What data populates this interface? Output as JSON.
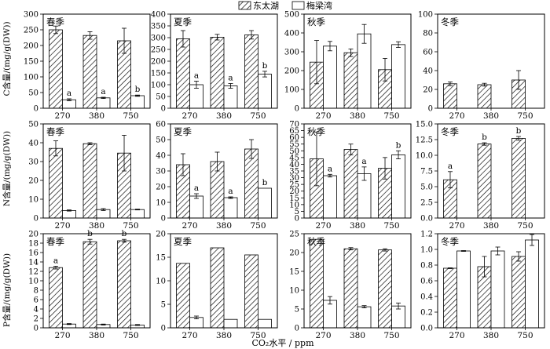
{
  "legend": {
    "items": [
      {
        "label": "东太湖",
        "pattern": "hatched"
      },
      {
        "label": "梅梁湾",
        "pattern": "white"
      }
    ]
  },
  "xlabel": "CO₂水平 / ppm",
  "row_ylabels": [
    "C含量/(mg/g(DW))",
    "N含量/(mg/g(DW))",
    "P含量/(mg/g(DW))"
  ],
  "chart_data": [
    {
      "type": "bar",
      "title": "春季",
      "row": 0,
      "col": 0,
      "categories": [
        "270",
        "380",
        "750"
      ],
      "series": [
        {
          "name": "东太湖",
          "values": [
            250,
            232,
            215
          ],
          "errors": [
            12,
            12,
            40
          ]
        },
        {
          "name": "梅梁湾",
          "values": [
            27,
            33,
            40
          ],
          "errors": [
            3,
            2,
            2
          ]
        }
      ],
      "ylim": [
        0,
        300
      ],
      "yticks": [
        0,
        50,
        100,
        150,
        200,
        250,
        300
      ],
      "annotations": [
        {
          "cat": 0,
          "series": 1,
          "text": "a"
        },
        {
          "cat": 1,
          "series": 1,
          "text": "a"
        },
        {
          "cat": 2,
          "series": 1,
          "text": "b"
        }
      ]
    },
    {
      "type": "bar",
      "title": "夏季",
      "row": 0,
      "col": 1,
      "categories": [
        "270",
        "380",
        "750"
      ],
      "series": [
        {
          "name": "东太湖",
          "values": [
            295,
            302,
            312
          ],
          "errors": [
            35,
            12,
            18
          ]
        },
        {
          "name": "梅梁湾",
          "values": [
            100,
            95,
            145
          ],
          "errors": [
            15,
            10,
            12
          ]
        }
      ],
      "ylim": [
        0,
        400
      ],
      "yticks": [
        0,
        50,
        100,
        150,
        200,
        250,
        300,
        350,
        400
      ],
      "annotations": [
        {
          "cat": 0,
          "series": 1,
          "text": "a"
        },
        {
          "cat": 1,
          "series": 1,
          "text": "a"
        },
        {
          "cat": 2,
          "series": 1,
          "text": "b"
        }
      ]
    },
    {
      "type": "bar",
      "title": "秋季",
      "row": 0,
      "col": 2,
      "categories": [
        "270",
        "380",
        "750"
      ],
      "series": [
        {
          "name": "东太湖",
          "values": [
            245,
            295,
            205
          ],
          "errors": [
            115,
            20,
            60
          ]
        },
        {
          "name": "梅梁湾",
          "values": [
            330,
            395,
            338
          ],
          "errors": [
            25,
            50,
            15
          ]
        }
      ],
      "ylim": [
        0,
        500
      ],
      "yticks": [
        0,
        100,
        200,
        300,
        400,
        500
      ],
      "annotations": []
    },
    {
      "type": "bar",
      "title": "冬季",
      "row": 0,
      "col": 3,
      "categories": [
        "270",
        "380",
        "750"
      ],
      "series": [
        {
          "name": "东太湖",
          "values": [
            26,
            25,
            30
          ],
          "errors": [
            2,
            1.5,
            10
          ]
        },
        {
          "name": "梅梁湾",
          "values": [
            0,
            0,
            0
          ],
          "errors": [
            0,
            0,
            0
          ]
        }
      ],
      "ylim": [
        0,
        100
      ],
      "yticks": [
        0,
        20,
        40,
        60,
        80,
        100
      ],
      "annotations": []
    },
    {
      "type": "bar",
      "title": "春季",
      "row": 1,
      "col": 0,
      "categories": [
        "270",
        "380",
        "750"
      ],
      "series": [
        {
          "name": "东太湖",
          "values": [
            37,
            39.5,
            34.5
          ],
          "errors": [
            4,
            0.5,
            9.5
          ]
        },
        {
          "name": "梅梁湾",
          "values": [
            4,
            4.5,
            4.5
          ],
          "errors": [
            0.3,
            0.5,
            0.2
          ]
        }
      ],
      "ylim": [
        0,
        50
      ],
      "yticks": [
        0,
        10,
        20,
        30,
        40,
        50
      ],
      "annotations": []
    },
    {
      "type": "bar",
      "title": "夏季",
      "row": 1,
      "col": 1,
      "categories": [
        "270",
        "380",
        "750"
      ],
      "series": [
        {
          "name": "东太湖",
          "values": [
            34,
            36,
            44
          ],
          "errors": [
            7,
            6,
            6
          ]
        },
        {
          "name": "梅梁湾",
          "values": [
            14,
            13,
            19
          ],
          "errors": [
            1.5,
            0.5,
            0
          ]
        }
      ],
      "ylim": [
        0,
        60
      ],
      "yticks": [
        0,
        10,
        20,
        30,
        40,
        50,
        60
      ],
      "annotations": [
        {
          "cat": 0,
          "series": 1,
          "text": "a"
        },
        {
          "cat": 1,
          "series": 1,
          "text": "a"
        },
        {
          "cat": 2,
          "series": 1,
          "text": "b"
        }
      ]
    },
    {
      "type": "bar",
      "title": "秋季",
      "row": 1,
      "col": 2,
      "categories": [
        "270",
        "380",
        "750"
      ],
      "series": [
        {
          "name": "东太湖",
          "values": [
            44,
            51,
            37
          ],
          "errors": [
            20,
            4,
            8
          ]
        },
        {
          "name": "梅梁湾",
          "values": [
            31.5,
            33,
            47
          ],
          "errors": [
            1,
            5,
            3
          ]
        }
      ],
      "ylim": [
        0,
        70
      ],
      "yticks": [
        0,
        5,
        10,
        15,
        20,
        25,
        30,
        35,
        40,
        45,
        50,
        55,
        60,
        65,
        70
      ],
      "annotations": [
        {
          "cat": 0,
          "series": 1,
          "text": "a"
        },
        {
          "cat": 1,
          "series": 1,
          "text": "a"
        },
        {
          "cat": 2,
          "series": 1,
          "text": "b"
        }
      ]
    },
    {
      "type": "bar",
      "title": "冬季",
      "row": 1,
      "col": 3,
      "categories": [
        "270",
        "380",
        "750"
      ],
      "series": [
        {
          "name": "东太湖",
          "values": [
            6.1,
            11.8,
            12.7
          ],
          "errors": [
            1.3,
            0.2,
            0.3
          ]
        },
        {
          "name": "梅梁湾",
          "values": [
            0,
            0,
            0
          ],
          "errors": [
            0,
            0,
            0
          ]
        }
      ],
      "ylim": [
        0,
        15
      ],
      "yticks": [
        0,
        2.5,
        5.0,
        7.5,
        10.0,
        12.5,
        15.0
      ],
      "annotations": [
        {
          "cat": 0,
          "series": 0,
          "text": "a"
        },
        {
          "cat": 1,
          "series": 0,
          "text": "b"
        },
        {
          "cat": 2,
          "series": 0,
          "text": "b"
        }
      ]
    },
    {
      "type": "bar",
      "title": "春季",
      "row": 2,
      "col": 0,
      "categories": [
        "270",
        "380",
        "750"
      ],
      "series": [
        {
          "name": "东太湖",
          "values": [
            12.8,
            18.3,
            18.5
          ],
          "errors": [
            0.3,
            0.5,
            0.3
          ]
        },
        {
          "name": "梅梁湾",
          "values": [
            0.8,
            0.7,
            0.6
          ],
          "errors": [
            0.1,
            0.1,
            0.1
          ]
        }
      ],
      "ylim": [
        0,
        20
      ],
      "yticks": [
        0,
        2,
        4,
        6,
        8,
        10,
        12,
        14,
        16,
        18,
        20
      ],
      "annotations": [
        {
          "cat": 0,
          "series": 0,
          "text": "a"
        },
        {
          "cat": 1,
          "series": 0,
          "text": "b"
        },
        {
          "cat": 2,
          "series": 0,
          "text": "b"
        }
      ]
    },
    {
      "type": "bar",
      "title": "夏季",
      "row": 2,
      "col": 1,
      "categories": [
        "270",
        "380",
        "750"
      ],
      "series": [
        {
          "name": "东太湖",
          "values": [
            13.7,
            17,
            15.5
          ],
          "errors": [
            0,
            0,
            0
          ]
        },
        {
          "name": "梅梁湾",
          "values": [
            2.2,
            1.8,
            1.8
          ],
          "errors": [
            0.3,
            0,
            0
          ]
        }
      ],
      "ylim": [
        0,
        20
      ],
      "yticks": [
        0,
        5,
        10,
        15,
        20
      ],
      "annotations": []
    },
    {
      "type": "bar",
      "title": "秋季",
      "row": 2,
      "col": 2,
      "categories": [
        "270",
        "380",
        "750"
      ],
      "series": [
        {
          "name": "东太湖",
          "values": [
            23.5,
            21,
            20.7
          ],
          "errors": [
            0,
            0.3,
            0.3
          ]
        },
        {
          "name": "梅梁湾",
          "values": [
            7.3,
            5.6,
            5.8
          ],
          "errors": [
            1,
            0.3,
            0.8
          ]
        }
      ],
      "ylim": [
        0,
        25
      ],
      "yticks": [
        0,
        5,
        10,
        15,
        20,
        25
      ],
      "annotations": []
    },
    {
      "type": "bar",
      "title": "冬季",
      "row": 2,
      "col": 3,
      "categories": [
        "270",
        "380",
        "750"
      ],
      "series": [
        {
          "name": "东太湖",
          "values": [
            0.76,
            0.78,
            0.91
          ],
          "errors": [
            0.005,
            0.13,
            0.06
          ]
        },
        {
          "name": "梅梁湾",
          "values": [
            0.98,
            0.98,
            1.12
          ],
          "errors": [
            0.005,
            0.05,
            0.07
          ]
        }
      ],
      "ylim": [
        0,
        1.2
      ],
      "yticks": [
        0,
        0.2,
        0.4,
        0.6,
        0.8,
        1.0,
        1.2
      ],
      "annotations": []
    }
  ]
}
